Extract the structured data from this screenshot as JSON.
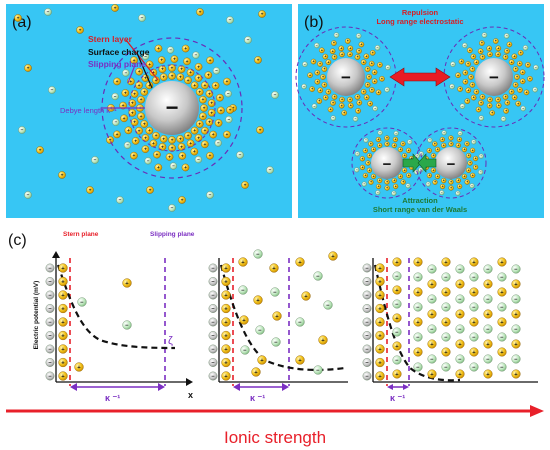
{
  "panel_a": {
    "label": "(a)",
    "center_sign": "−",
    "labels": {
      "stern_layer": "Stern layer",
      "surface_charge": "Surface charge",
      "slipping_plane": "Slipping plane",
      "debye_length": "Debye length κ⁻¹"
    }
  },
  "panel_b": {
    "label": "(b)",
    "repulsion_title": "Repulsion",
    "repulsion_sub": "Long range electrostatic",
    "attraction_title": "Attraction",
    "attraction_sub": "Short range van der Waals",
    "center_sign": "−"
  },
  "panel_c": {
    "label": "(c)",
    "y_axis_label": "Electric potential (mV)",
    "x_axis_label": "x",
    "stern_plane": "Stern plane",
    "slipping_plane": "Slipping plane",
    "zeta": "ζ",
    "kappa": "κ ⁻¹"
  },
  "footer": {
    "ionic_strength": "Ionic strength"
  },
  "colors": {
    "panel_bg": "#37c6f4",
    "cation": "#f2c318",
    "anion": "#b8e6b8",
    "stern_line": "#e8202a",
    "slip_line": "#7b2fc2",
    "arrow_red": "#e81c24",
    "arrow_green": "#2aa84a"
  }
}
